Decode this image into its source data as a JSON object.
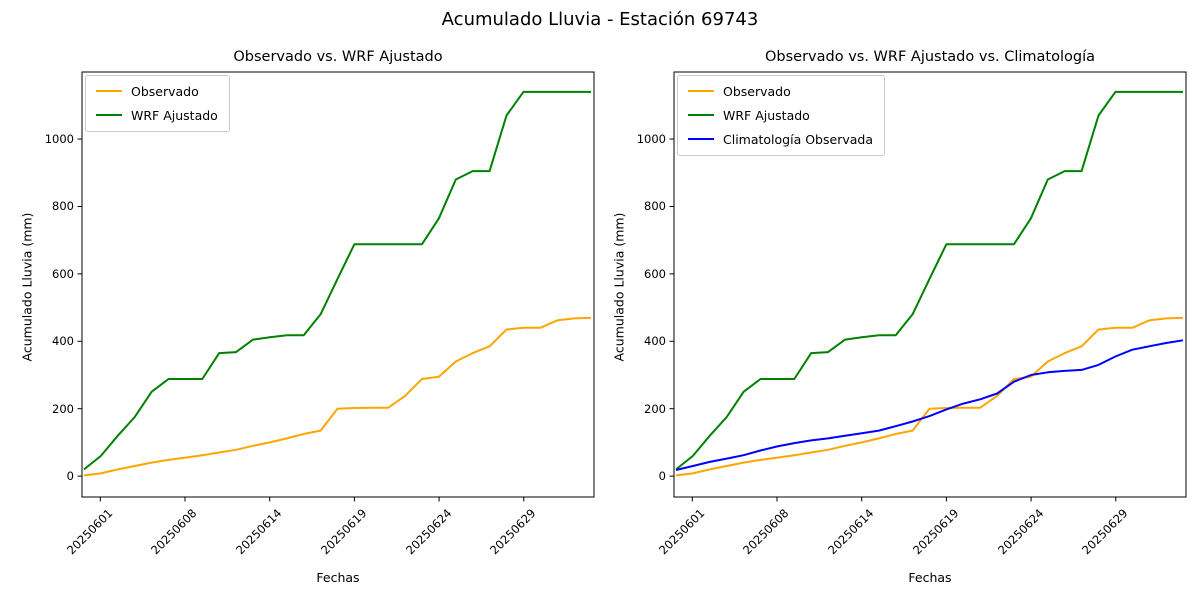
{
  "figure_title": "Acumulado Lluvia - Estación 69743",
  "chart_data": [
    {
      "type": "line",
      "title": "Observado vs. WRF Ajustado",
      "xlabel": "Fechas",
      "ylabel": "Acumulado Lluvia (mm)",
      "x_tick_labels": [
        "20250601",
        "20250608",
        "20250614",
        "20250619",
        "20250624",
        "20250629"
      ],
      "x_tick_indices": [
        1,
        6,
        11,
        16,
        21,
        26
      ],
      "y_ticks": [
        0,
        200,
        400,
        600,
        800,
        1000
      ],
      "ylim": [
        -62,
        1199
      ],
      "n_points": 31,
      "grid": false,
      "legend_position": "upper left",
      "series": [
        {
          "name": "Observado",
          "color": "#ffa500",
          "values": [
            2,
            8,
            20,
            30,
            40,
            48,
            55,
            62,
            70,
            78,
            90,
            100,
            112,
            125,
            135,
            200,
            202,
            203,
            203,
            238,
            288,
            295,
            340,
            365,
            385,
            435,
            440,
            440,
            462,
            468,
            470
          ]
        },
        {
          "name": "WRF Ajustado",
          "color": "#008000",
          "values": [
            20,
            60,
            120,
            175,
            250,
            288,
            288,
            288,
            365,
            368,
            405,
            412,
            418,
            418,
            480,
            585,
            688,
            688,
            688,
            688,
            688,
            765,
            880,
            905,
            905,
            1070,
            1140,
            1140,
            1140,
            1140,
            1140
          ]
        }
      ]
    },
    {
      "type": "line",
      "title": "Observado vs. WRF Ajustado vs. Climatología",
      "xlabel": "Fechas",
      "ylabel": "Acumulado Lluvia (mm)",
      "x_tick_labels": [
        "20250601",
        "20250608",
        "20250614",
        "20250619",
        "20250624",
        "20250629"
      ],
      "x_tick_indices": [
        1,
        6,
        11,
        16,
        21,
        26
      ],
      "y_ticks": [
        0,
        200,
        400,
        600,
        800,
        1000
      ],
      "ylim": [
        -62,
        1199
      ],
      "n_points": 31,
      "grid": false,
      "legend_position": "upper left",
      "series": [
        {
          "name": "Observado",
          "color": "#ffa500",
          "values": [
            2,
            8,
            20,
            30,
            40,
            48,
            55,
            62,
            70,
            78,
            90,
            100,
            112,
            125,
            135,
            200,
            202,
            203,
            203,
            238,
            288,
            295,
            340,
            365,
            385,
            435,
            440,
            440,
            462,
            468,
            470
          ]
        },
        {
          "name": "WRF Ajustado",
          "color": "#008000",
          "values": [
            20,
            60,
            120,
            175,
            250,
            288,
            288,
            288,
            365,
            368,
            405,
            412,
            418,
            418,
            480,
            585,
            688,
            688,
            688,
            688,
            688,
            765,
            880,
            905,
            905,
            1070,
            1140,
            1140,
            1140,
            1140,
            1140
          ]
        },
        {
          "name": "Climatología Observada",
          "color": "#0000ff",
          "values": [
            18,
            30,
            42,
            52,
            62,
            76,
            88,
            98,
            106,
            112,
            120,
            127,
            135,
            148,
            162,
            178,
            198,
            215,
            228,
            245,
            280,
            300,
            308,
            312,
            315,
            330,
            355,
            375,
            385,
            395,
            403
          ]
        }
      ]
    }
  ]
}
